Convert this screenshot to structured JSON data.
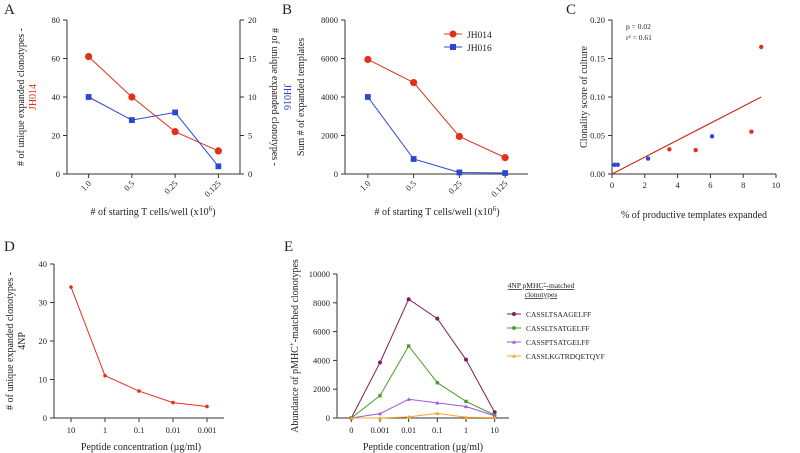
{
  "colors": {
    "red": "#e2301b",
    "blue": "#2c46d4",
    "purple": "#7b1f5a",
    "green": "#4c9a2a",
    "violet": "#9b59e0",
    "orange": "#f5a623",
    "fit_line": "#cc2a1a",
    "axis": "#333333"
  },
  "chart_data": [
    {
      "panel": "A",
      "type": "line",
      "categories": [
        "1.0",
        "0.5",
        "0.25",
        "0.125"
      ],
      "xlabel": "# of starting T cells/well (x10",
      "xlabel_sup": "6",
      "xlabel_close": ")",
      "ylabel_prefix": "# of unique expanded clonotypes -",
      "ylabel_colored": "JH014",
      "y2label_prefix": "# of unique expanded clonotypes -",
      "y2label_colored": "JH016",
      "ylim": [
        0,
        80
      ],
      "yticks": [
        "0",
        "20",
        "40",
        "60",
        "80"
      ],
      "y2lim": [
        0,
        20
      ],
      "y2ticks": [
        "0",
        "5",
        "10",
        "15",
        "20"
      ],
      "series": [
        {
          "name": "JH014",
          "axis": "left",
          "values": [
            61,
            40,
            22,
            12
          ]
        },
        {
          "name": "JH016",
          "axis": "right",
          "values": [
            10,
            7,
            8,
            1
          ]
        }
      ]
    },
    {
      "panel": "B",
      "type": "line",
      "categories": [
        "1.0",
        "0.5",
        "0.25",
        "0.125"
      ],
      "xlabel": "# of starting T cells/well (x10",
      "xlabel_sup": "6",
      "xlabel_close": ")",
      "ylabel": "Sum # of expanded templates",
      "ylim": [
        0,
        8000
      ],
      "yticks": [
        "0",
        "2000",
        "4000",
        "6000",
        "8000"
      ],
      "legend": [
        "JH014",
        "JH016"
      ],
      "series": [
        {
          "name": "JH014",
          "values": [
            5950,
            4750,
            1950,
            850
          ]
        },
        {
          "name": "JH016",
          "values": [
            4000,
            780,
            80,
            50
          ]
        }
      ]
    },
    {
      "panel": "C",
      "type": "scatter",
      "xlabel": "% of productive templates expanded",
      "ylabel": "Clonality score of culture",
      "xlim": [
        0,
        10
      ],
      "xticks": [
        "0",
        "2",
        "4",
        "6",
        "8",
        "10"
      ],
      "ylim": [
        0,
        0.2
      ],
      "yticks": [
        "0.00",
        "0.05",
        "0.10",
        "0.15",
        "0.20"
      ],
      "annotation_p": "p = 0.02",
      "annotation_r": "r² = 0.61",
      "fit_line": {
        "x": [
          0,
          9.1
        ],
        "y": [
          0.0,
          0.1
        ]
      },
      "series": [
        {
          "name": "JH014",
          "x": [
            3.5,
            5.1,
            8.5,
            9.1
          ],
          "y": [
            0.032,
            0.031,
            0.055,
            0.165
          ]
        },
        {
          "name": "JH016",
          "x": [
            0.15,
            0.35,
            2.2,
            6.1
          ],
          "y": [
            0.012,
            0.012,
            0.02,
            0.049
          ]
        }
      ]
    },
    {
      "panel": "D",
      "type": "line",
      "categories": [
        "10",
        "1",
        "0.1",
        "0.01",
        "0.001"
      ],
      "xlabel": "Peptide concentration (µg/ml)",
      "ylabel_line1": "# of unique expanded clonotypes -",
      "ylabel_line2": "4NP",
      "ylim": [
        0,
        40
      ],
      "yticks": [
        "0",
        "10",
        "20",
        "30",
        "40"
      ],
      "series": [
        {
          "name": "4NP",
          "values": [
            34,
            11,
            7,
            4,
            3
          ]
        }
      ]
    },
    {
      "panel": "E",
      "type": "line",
      "categories": [
        "0",
        "0.001",
        "0.01",
        "0.1",
        "1",
        "10"
      ],
      "xlabel": "Peptide concentration (µg/ml)",
      "ylabel_prefix": "Abundance of pMHC",
      "ylabel_sup": "+",
      "ylabel_suffix": "-matched clonotypes",
      "ylim": [
        0,
        10000
      ],
      "yticks": [
        "0",
        "2000",
        "4000",
        "6000",
        "8000",
        "10000"
      ],
      "legend_title_line1": "4NP pMHC",
      "legend_title_sup": "+",
      "legend_title_line1_suffix": "-matched",
      "legend_title_line2": "clonotypes",
      "series": [
        {
          "name": "CASSLTSAAGELFF",
          "marker": "circle",
          "values": [
            0,
            3850,
            8250,
            6900,
            4050,
            400
          ]
        },
        {
          "name": "CASSLTSATGELFF",
          "marker": "square",
          "values": [
            0,
            1550,
            5000,
            2450,
            1150,
            200
          ]
        },
        {
          "name": "CASSPTSATGELFF",
          "marker": "triangle",
          "values": [
            0,
            300,
            1300,
            1050,
            800,
            150
          ]
        },
        {
          "name": "CASSLKGTRDQETQYF",
          "marker": "triangle",
          "values": [
            0,
            0,
            80,
            320,
            50,
            30
          ]
        }
      ]
    }
  ]
}
